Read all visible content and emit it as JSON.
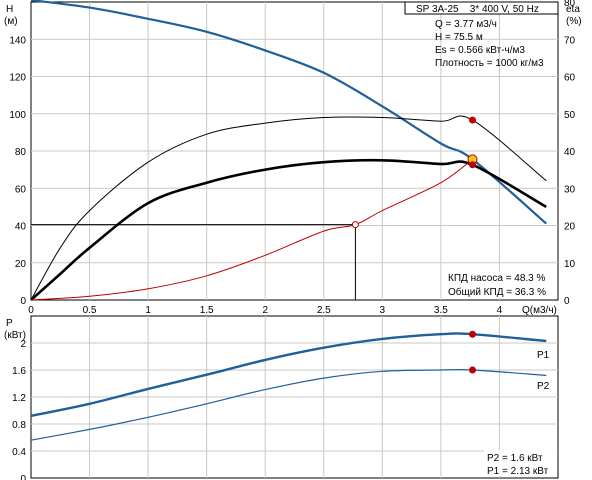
{
  "chart_data": [
    {
      "type": "line",
      "title": "SP 3A-25    3* 400 V, 50 Hz",
      "info_lines": [
        "Q = 3.77 м3/ч",
        "H = 75.5 м",
        "Es = 0.566 кВт-ч/м3",
        "Плотность = 1000 кг/м3"
      ],
      "efficiency_lines": [
        "КПД насоса = 48.3 %",
        "Общий КПД = 36.3 %"
      ],
      "xlabel": "Q(м3/ч)",
      "ylabel": "H",
      "ylabel_unit": "(м)",
      "y2label": "eta",
      "y2label_unit": "(%)",
      "xlim": [
        0,
        4.5
      ],
      "ylim": [
        0,
        160
      ],
      "y2lim": [
        0,
        80
      ],
      "xticks": [
        0,
        0.5,
        1,
        1.5,
        2,
        2.5,
        3,
        3.5,
        4
      ],
      "xtick_labels": [
        "0",
        "0.5",
        "1",
        "1.5",
        "2",
        "2.5",
        "3",
        "3.5",
        "4"
      ],
      "yticks": [
        0,
        20,
        40,
        60,
        80,
        100,
        120,
        140
      ],
      "y2ticks": [
        0,
        10,
        20,
        30,
        40,
        50,
        60,
        70,
        80
      ],
      "grid": true,
      "series": [
        {
          "key": "head",
          "color": "#1f5f9a",
          "axis": "left",
          "x": [
            0,
            0.5,
            1,
            1.5,
            2,
            2.5,
            3,
            3.5,
            3.77,
            4.4
          ],
          "y": [
            161,
            157,
            151,
            144,
            134,
            122,
            104,
            84,
            75.5,
            41
          ]
        },
        {
          "key": "pump_eff",
          "color": "#000000",
          "axis": "right",
          "x": [
            0,
            0.25,
            0.5,
            1,
            1.5,
            2,
            2.5,
            3,
            3.5,
            3.77,
            4.4
          ],
          "y": [
            0,
            14,
            24,
            37,
            44.5,
            47.5,
            49,
            49,
            48,
            48.3,
            32
          ]
        },
        {
          "key": "total_eff",
          "color": "#000000",
          "axis": "right",
          "x": [
            0,
            0.25,
            0.5,
            1,
            1.5,
            2,
            2.5,
            3,
            3.5,
            3.77,
            4.4
          ],
          "y": [
            0,
            7,
            14,
            26,
            31.5,
            35,
            37,
            37.5,
            36.5,
            36.3,
            25
          ]
        },
        {
          "key": "system",
          "color": "#c00000",
          "axis": "left",
          "x": [
            0,
            0.5,
            1,
            1.5,
            2,
            2.5,
            2.77,
            3,
            3.5,
            3.77
          ],
          "y": [
            0,
            2,
            6,
            13,
            24,
            37,
            40.5,
            48,
            63,
            75.5
          ]
        }
      ],
      "operating_point": {
        "q": 3.77,
        "h": 75.5,
        "pump_eff": 48.3,
        "total_eff": 36.3
      },
      "intersection": {
        "q": 2.77,
        "h": 40.5
      }
    },
    {
      "type": "line",
      "ylabel": "P",
      "ylabel_unit": "(кВт)",
      "xlim": [
        0,
        4.5
      ],
      "ylim": [
        0,
        2.4
      ],
      "xticks": [
        0,
        0.5,
        1,
        1.5,
        2,
        2.5,
        3,
        3.5,
        4
      ],
      "yticks": [
        0,
        0.4,
        0.8,
        1.2,
        1.6,
        2
      ],
      "ytick_labels": [
        "0",
        "0.4",
        "0.8",
        "1.2",
        "1.6",
        "2"
      ],
      "grid": true,
      "series": [
        {
          "name": "P1",
          "key": "p1",
          "color": "#1f5f9a",
          "x": [
            0,
            0.5,
            1,
            1.5,
            2,
            2.5,
            3,
            3.5,
            3.77,
            4.4
          ],
          "y": [
            0.92,
            1.1,
            1.32,
            1.53,
            1.75,
            1.93,
            2.06,
            2.13,
            2.13,
            2.03
          ]
        },
        {
          "name": "P2",
          "key": "p2",
          "color": "#1f5f9a",
          "x": [
            0,
            0.5,
            1,
            1.5,
            2,
            2.5,
            3,
            3.5,
            3.77,
            4.4
          ],
          "y": [
            0.56,
            0.72,
            0.9,
            1.1,
            1.31,
            1.48,
            1.58,
            1.6,
            1.6,
            1.52
          ]
        }
      ],
      "operating_point": {
        "q": 3.77,
        "p1": 2.13,
        "p2": 1.6
      },
      "values_lines": [
        "P2 = 1.6 кВт",
        "P1 = 2.13 кВт"
      ]
    }
  ],
  "colors": {
    "blue": "#1f5f9a",
    "red": "#c00000",
    "marker_yellow": "#f5c518",
    "grid": "#c8c8c8"
  }
}
